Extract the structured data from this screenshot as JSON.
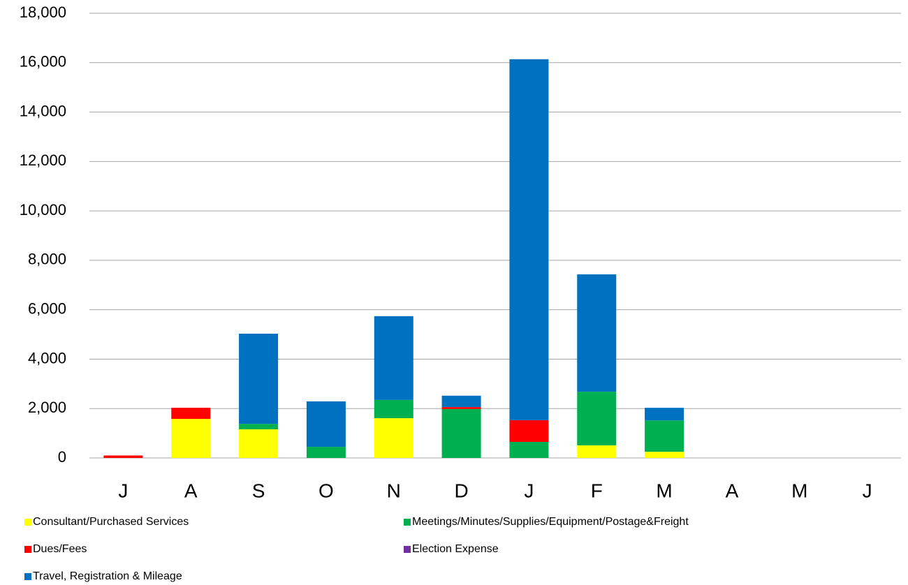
{
  "chart_data": {
    "type": "stacked_bar",
    "categories": [
      "J",
      "A",
      "S",
      "O",
      "N",
      "D",
      "J",
      "F",
      "M",
      "A",
      "M",
      "J"
    ],
    "series": [
      {
        "name": "Consultant/Purchased Services",
        "color": "#ffff00",
        "values": [
          0,
          1580,
          1160,
          0,
          1610,
          0,
          0,
          510,
          250,
          null,
          null,
          null
        ]
      },
      {
        "name": "Meetings/Minutes/Supplies/Equipment/Postage&Freight",
        "color": "#00b050",
        "values": [
          0,
          0,
          220,
          450,
          740,
          1980,
          650,
          2170,
          1270,
          null,
          null,
          null
        ]
      },
      {
        "name": "Dues/Fees",
        "color": "#ff0000",
        "values": [
          100,
          450,
          0,
          0,
          0,
          80,
          880,
          0,
          0,
          null,
          null,
          null
        ]
      },
      {
        "name": "Election Expense",
        "color": "#7030a0",
        "values": [
          0,
          0,
          0,
          0,
          0,
          0,
          0,
          0,
          0,
          null,
          null,
          null
        ]
      },
      {
        "name": "Travel, Registration & Mileage",
        "color": "#0070c0",
        "values": [
          0,
          0,
          3650,
          1840,
          3390,
          460,
          14610,
          4750,
          510,
          null,
          null,
          null
        ]
      }
    ],
    "ylim": [
      0,
      18000
    ],
    "yticks": [
      0,
      {
        "value": 2000,
        "label": "2,000"
      },
      {
        "value": 4000,
        "label": "4,000"
      },
      {
        "value": 6000,
        "label": "6,000"
      },
      {
        "value": 8000,
        "label": "8,000"
      },
      {
        "value": 10000,
        "label": "10,000"
      },
      {
        "value": 12000,
        "label": "12,000"
      },
      {
        "value": 14000,
        "label": "14,000"
      },
      {
        "value": 16000,
        "label": "16,000"
      },
      {
        "value": 18000,
        "label": "18,000"
      }
    ],
    "grid": true,
    "legend": "bottom"
  }
}
